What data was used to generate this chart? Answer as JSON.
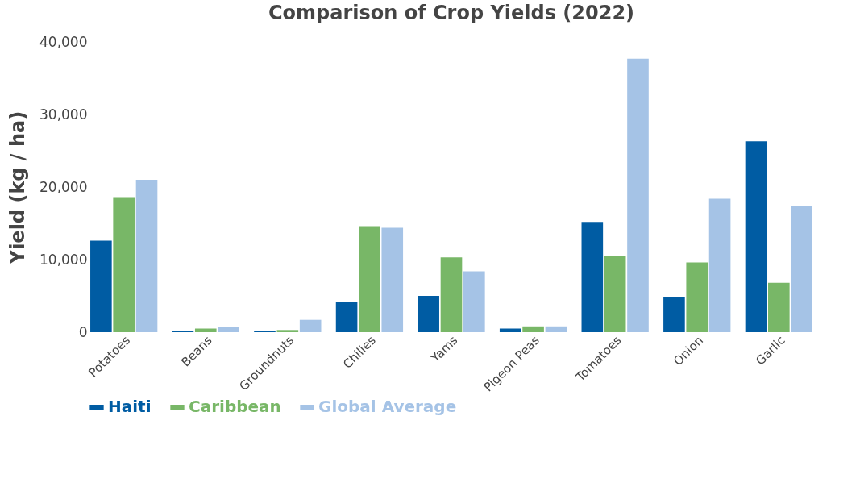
{
  "chart_data": {
    "type": "bar",
    "title": "Comparison of Crop Yields (2022)",
    "ylabel": "Yield (kg / ha)",
    "categories": [
      "Potatoes",
      "Beans",
      "Groundnuts",
      "Chilies",
      "Yams",
      "Pigeon Peas",
      "Tomatoes",
      "Onion",
      "Garlic"
    ],
    "series": [
      {
        "name": "Haiti",
        "color": "#005ca3",
        "values": [
          12600,
          200,
          200,
          4100,
          5000,
          500,
          15200,
          4900,
          26300
        ]
      },
      {
        "name": "Caribbean",
        "color": "#78b767",
        "values": [
          18600,
          500,
          300,
          14600,
          10300,
          800,
          10500,
          9600,
          6800
        ]
      },
      {
        "name": "Global Average",
        "color": "#a5c3e6",
        "values": [
          21000,
          700,
          1700,
          14400,
          8400,
          800,
          37700,
          18400,
          17400
        ]
      }
    ],
    "ylim": [
      0,
      40000
    ],
    "yticks": [
      0,
      {
        "value": 10000,
        "label": "10,000"
      },
      {
        "value": 20000,
        "label": "20,000"
      },
      {
        "value": 30000,
        "label": "30,000"
      },
      {
        "value": 40000,
        "label": "40,000"
      }
    ],
    "grid": false,
    "legend": "bottom left"
  }
}
